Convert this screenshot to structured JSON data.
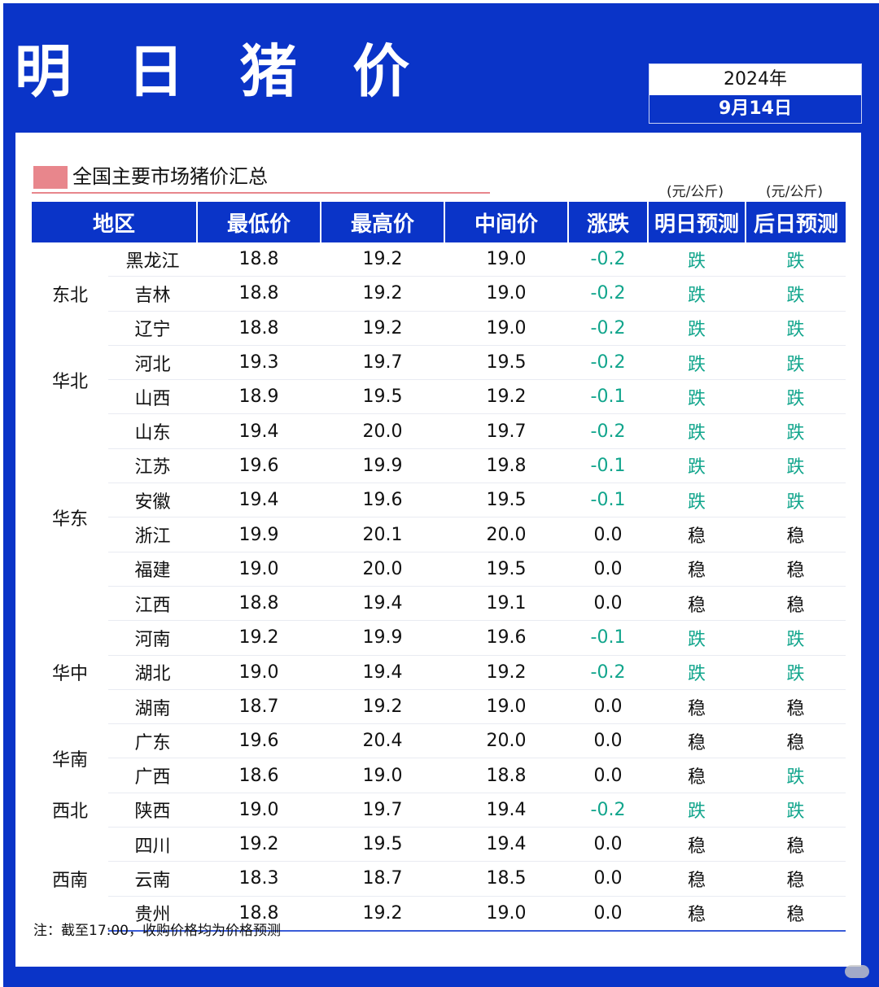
{
  "title": "明 日 猪 价",
  "date": {
    "year": "2024年",
    "day": "9月14日"
  },
  "section_title": "全国主要市场猪价汇总",
  "units": {
    "tomorrow": "(元/公斤)",
    "after": "(元/公斤)"
  },
  "columns": [
    "地区",
    "最低价",
    "最高价",
    "中间价",
    "涨跌",
    "明日预测",
    "后日预测"
  ],
  "groups": [
    {
      "region": "东北",
      "rows": [
        {
          "province": "黑龙江",
          "low": "18.8",
          "high": "19.2",
          "mid": "19.0",
          "change": "-0.2",
          "tomorrow": "跌",
          "after": "跌"
        },
        {
          "province": "吉林",
          "low": "18.8",
          "high": "19.2",
          "mid": "19.0",
          "change": "-0.2",
          "tomorrow": "跌",
          "after": "跌"
        },
        {
          "province": "辽宁",
          "low": "18.8",
          "high": "19.2",
          "mid": "19.0",
          "change": "-0.2",
          "tomorrow": "跌",
          "after": "跌"
        }
      ]
    },
    {
      "region": "华北",
      "rows": [
        {
          "province": "河北",
          "low": "19.3",
          "high": "19.7",
          "mid": "19.5",
          "change": "-0.2",
          "tomorrow": "跌",
          "after": "跌"
        },
        {
          "province": "山西",
          "low": "18.9",
          "high": "19.5",
          "mid": "19.2",
          "change": "-0.1",
          "tomorrow": "跌",
          "after": "跌"
        }
      ]
    },
    {
      "region": "华东",
      "rows": [
        {
          "province": "山东",
          "low": "19.4",
          "high": "20.0",
          "mid": "19.7",
          "change": "-0.2",
          "tomorrow": "跌",
          "after": "跌"
        },
        {
          "province": "江苏",
          "low": "19.6",
          "high": "19.9",
          "mid": "19.8",
          "change": "-0.1",
          "tomorrow": "跌",
          "after": "跌"
        },
        {
          "province": "安徽",
          "low": "19.4",
          "high": "19.6",
          "mid": "19.5",
          "change": "-0.1",
          "tomorrow": "跌",
          "after": "跌"
        },
        {
          "province": "浙江",
          "low": "19.9",
          "high": "20.1",
          "mid": "20.0",
          "change": "0.0",
          "tomorrow": "稳",
          "after": "稳"
        },
        {
          "province": "福建",
          "low": "19.0",
          "high": "20.0",
          "mid": "19.5",
          "change": "0.0",
          "tomorrow": "稳",
          "after": "稳"
        },
        {
          "province": "江西",
          "low": "18.8",
          "high": "19.4",
          "mid": "19.1",
          "change": "0.0",
          "tomorrow": "稳",
          "after": "稳"
        }
      ]
    },
    {
      "region": "华中",
      "rows": [
        {
          "province": "河南",
          "low": "19.2",
          "high": "19.9",
          "mid": "19.6",
          "change": "-0.1",
          "tomorrow": "跌",
          "after": "跌"
        },
        {
          "province": "湖北",
          "low": "19.0",
          "high": "19.4",
          "mid": "19.2",
          "change": "-0.2",
          "tomorrow": "跌",
          "after": "跌"
        },
        {
          "province": "湖南",
          "low": "18.7",
          "high": "19.2",
          "mid": "19.0",
          "change": "0.0",
          "tomorrow": "稳",
          "after": "稳"
        }
      ]
    },
    {
      "region": "华南",
      "rows": [
        {
          "province": "广东",
          "low": "19.6",
          "high": "20.4",
          "mid": "20.0",
          "change": "0.0",
          "tomorrow": "稳",
          "after": "稳"
        },
        {
          "province": "广西",
          "low": "18.6",
          "high": "19.0",
          "mid": "18.8",
          "change": "0.0",
          "tomorrow": "稳",
          "after": "跌"
        }
      ]
    },
    {
      "region": "西北",
      "rows": [
        {
          "province": "陕西",
          "low": "19.0",
          "high": "19.7",
          "mid": "19.4",
          "change": "-0.2",
          "tomorrow": "跌",
          "after": "跌"
        }
      ]
    },
    {
      "region": "西南",
      "rows": [
        {
          "province": "四川",
          "low": "19.2",
          "high": "19.5",
          "mid": "19.4",
          "change": "0.0",
          "tomorrow": "稳",
          "after": "稳"
        },
        {
          "province": "云南",
          "low": "18.3",
          "high": "18.7",
          "mid": "18.5",
          "change": "0.0",
          "tomorrow": "稳",
          "after": "稳"
        },
        {
          "province": "贵州",
          "low": "18.8",
          "high": "19.2",
          "mid": "19.0",
          "change": "0.0",
          "tomorrow": "稳",
          "after": "稳"
        }
      ]
    }
  ],
  "note": "注：截至17:00，收购价格均为价格预测",
  "colors": {
    "brand_blue": "#0a34c8",
    "down_green": "#11a58c",
    "accent_pink": "#e8868c"
  }
}
